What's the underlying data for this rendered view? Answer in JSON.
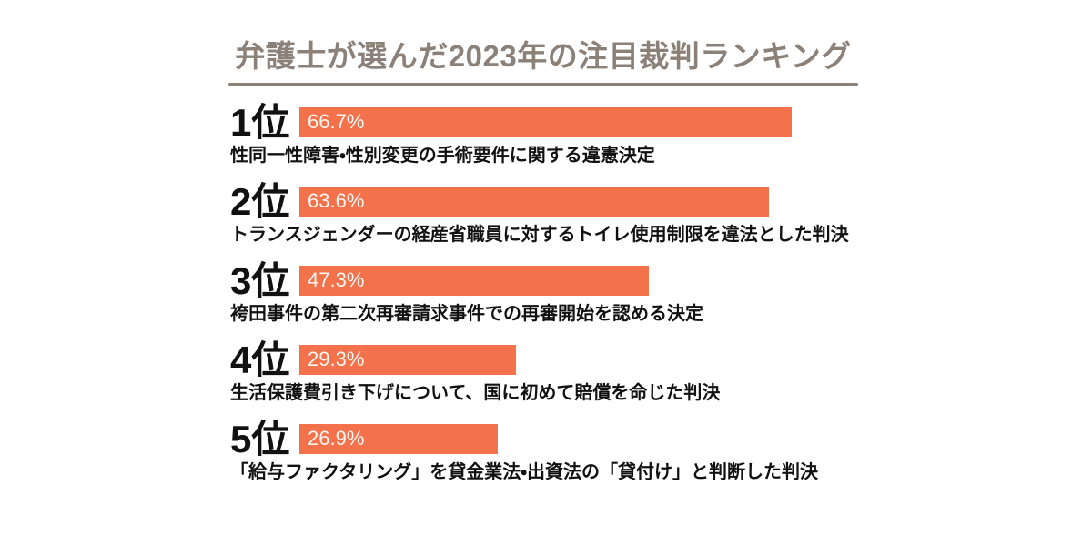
{
  "header": {
    "title": "弁護士が選んだ2023年の注目裁判ランキング"
  },
  "colors": {
    "bar": "#f3714b",
    "title": "#8b8178",
    "text": "#111111",
    "value_label": "#fcf7f0",
    "background": "#ffffff"
  },
  "rows": [
    {
      "rank": "1位",
      "value": 66.7,
      "value_label": "66.7%",
      "description": "性同一性障害・性別変更の手術要件に関する違憲決定"
    },
    {
      "rank": "2位",
      "value": 63.6,
      "value_label": "63.6%",
      "description": "トランスジェンダーの経産省職員に対するトイレ使用制限を違法とした判決"
    },
    {
      "rank": "3位",
      "value": 47.3,
      "value_label": "47.3%",
      "description": "袴田事件の第二次再審請求事件での再審開始を認める決定"
    },
    {
      "rank": "4位",
      "value": 29.3,
      "value_label": "29.3%",
      "description": "生活保護費引き下げについて、国に初めて賠償を命じた判決"
    },
    {
      "rank": "5位",
      "value": 26.9,
      "value_label": "26.9%",
      "description": "「給与ファクタリング」を貸金業法・出資法の「貸付け」と判断した判決"
    }
  ],
  "chart_data": {
    "type": "bar",
    "orientation": "horizontal",
    "title": "弁護士が選んだ2023年の注目裁判ランキング",
    "categories": [
      "1位",
      "2位",
      "3位",
      "4位",
      "5位"
    ],
    "values": [
      66.7,
      63.6,
      47.3,
      29.3,
      26.9
    ],
    "value_labels": [
      "66.7%",
      "63.6%",
      "47.3%",
      "29.3%",
      "26.9%"
    ],
    "bar_descriptions": [
      "性同一性障害・性別変更の手術要件に関する違憲決定",
      "トランスジェンダーの経産省職員に対するトイレ使用制限を違法とした判決",
      "袴田事件の第二次再審請求事件での再審開始を認める決定",
      "生活保護費引き下げについて、国に初めて賠償を命じた判決",
      "「給与ファクタリング」を貸金業法・出資法の「貸付け」と判断した判決"
    ],
    "xlabel": "",
    "ylabel": "",
    "xlim": [
      0,
      75
    ],
    "value_unit": "%",
    "grid": false,
    "legend": false,
    "bar_color": "#f3714b"
  }
}
